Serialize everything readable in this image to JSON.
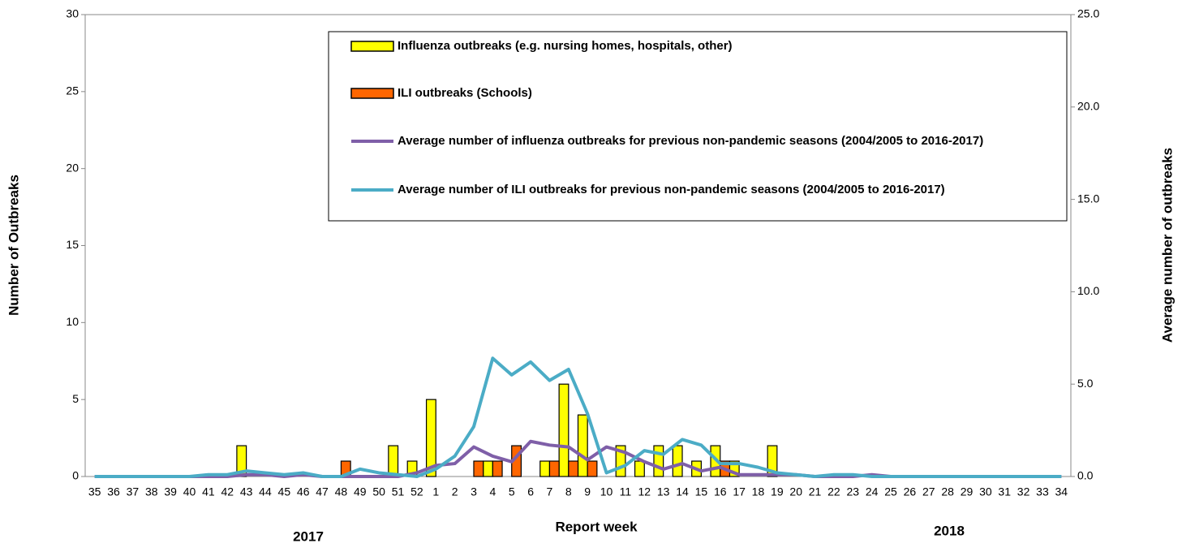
{
  "chart_data": {
    "type": "bar",
    "x_label": "Report week",
    "y_label": "Number of Outbreaks",
    "y2_label": "Average number of outbreaks",
    "annotations": [
      "2017",
      "2018"
    ],
    "categories": [
      "35",
      "36",
      "37",
      "38",
      "39",
      "40",
      "41",
      "42",
      "43",
      "44",
      "45",
      "46",
      "47",
      "48",
      "49",
      "50",
      "51",
      "52",
      "1",
      "2",
      "3",
      "4",
      "5",
      "6",
      "7",
      "8",
      "9",
      "10",
      "11",
      "12",
      "13",
      "14",
      "15",
      "16",
      "17",
      "18",
      "19",
      "20",
      "21",
      "22",
      "23",
      "24",
      "25",
      "26",
      "27",
      "28",
      "29",
      "30",
      "31",
      "32",
      "33",
      "34"
    ],
    "ylim": [
      0,
      30
    ],
    "yticks": [
      0,
      5,
      10,
      15,
      20,
      25,
      30
    ],
    "y2lim": [
      0,
      25
    ],
    "y2ticks": [
      {
        "value": 0,
        "label": "0.0"
      },
      {
        "value": 5,
        "label": "5.0"
      },
      {
        "value": 10,
        "label": "10.0"
      },
      {
        "value": 15,
        "label": "15.0"
      },
      {
        "value": 20,
        "label": "20.0"
      },
      {
        "value": 25,
        "label": "25.0"
      }
    ],
    "series": [
      {
        "name": "Influenza outbreaks (e.g. nursing homes, hospitals, other)",
        "type": "bar",
        "color": "#ffff00",
        "values": [
          0,
          0,
          0,
          0,
          0,
          0,
          0,
          0,
          2,
          0,
          0,
          0,
          0,
          0,
          0,
          0,
          2,
          1,
          5,
          0,
          0,
          1,
          0,
          0,
          1,
          6,
          4,
          0,
          2,
          1,
          2,
          2,
          1,
          2,
          1,
          0,
          2,
          0,
          0,
          0,
          0,
          0,
          0,
          0,
          0,
          0,
          0,
          0,
          0,
          0,
          0,
          0
        ]
      },
      {
        "name": "ILI outbreaks (Schools)",
        "type": "bar",
        "color": "#ff6600",
        "values": [
          0,
          0,
          0,
          0,
          0,
          0,
          0,
          0,
          0,
          0,
          0,
          0,
          0,
          1,
          0,
          0,
          0,
          0,
          0,
          0,
          1,
          1,
          2,
          0,
          1,
          1,
          1,
          0,
          0,
          0,
          0,
          0,
          0,
          1,
          0,
          0,
          0,
          0,
          0,
          0,
          0,
          0,
          0,
          0,
          0,
          0,
          0,
          0,
          0,
          0,
          0,
          0
        ]
      },
      {
        "name": "Average number of influenza outbreaks for previous non-pandemic seasons (2004/2005 to 2016-2017)",
        "type": "line",
        "axis": "y2",
        "color": "#7f5fa8",
        "values": [
          0,
          0,
          0,
          0,
          0,
          0,
          0,
          0,
          0.1,
          0.1,
          0,
          0.1,
          0,
          0,
          0,
          0,
          0,
          0.2,
          0.6,
          0.7,
          1.6,
          1.1,
          0.8,
          1.9,
          1.7,
          1.6,
          0.9,
          1.6,
          1.3,
          0.8,
          0.4,
          0.7,
          0.3,
          0.5,
          0.1,
          0.1,
          0.1,
          0.1,
          0,
          0,
          0,
          0.1,
          0,
          0,
          0,
          0,
          0,
          0,
          0,
          0,
          0,
          0
        ]
      },
      {
        "name": "Average number of ILI outbreaks for previous non-pandemic seasons (2004/2005 to 2016-2017)",
        "type": "line",
        "axis": "y2",
        "color": "#4bacc6",
        "values": [
          0,
          0,
          0,
          0,
          0,
          0,
          0.1,
          0.1,
          0.3,
          0.2,
          0.1,
          0.2,
          0,
          0,
          0.4,
          0.2,
          0.1,
          0,
          0.4,
          1.1,
          2.7,
          6.4,
          5.5,
          6.2,
          5.2,
          5.8,
          3.4,
          0.2,
          0.6,
          1.4,
          1.2,
          2.0,
          1.7,
          0.7,
          0.7,
          0.5,
          0.2,
          0.1,
          0,
          0.1,
          0.1,
          0,
          0,
          0,
          0,
          0,
          0,
          0,
          0,
          0,
          0,
          0
        ]
      }
    ]
  }
}
